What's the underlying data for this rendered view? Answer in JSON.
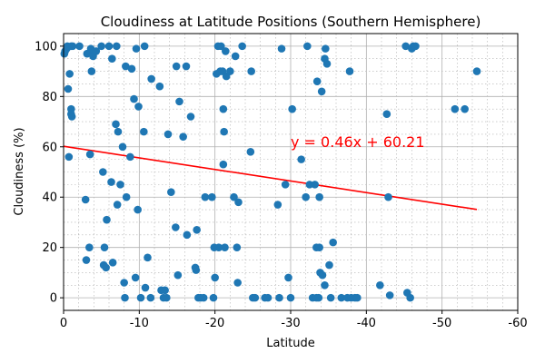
{
  "chart_data": {
    "type": "scatter",
    "title": "Cloudiness at Latitude Positions (Southern Hemisphere)",
    "xlabel": "Latitude",
    "ylabel": "Cloudiness (%)",
    "xlim": [
      0,
      -60
    ],
    "ylim": [
      -5,
      105
    ],
    "xticks": [
      0,
      -10,
      -20,
      -30,
      -40,
      -50,
      -60
    ],
    "yticks": [
      0,
      20,
      40,
      60,
      80,
      100
    ],
    "grid": true,
    "colors": {
      "points": "#1f77b4",
      "regression": "#ff0000"
    },
    "regression": {
      "slope": 0.46,
      "intercept": 60.21,
      "x_range": [
        0,
        -54.6
      ],
      "label": "y = 0.46x + 60.21"
    },
    "points": [
      [
        -0.1,
        97
      ],
      [
        -0.2,
        98
      ],
      [
        -0.4,
        99
      ],
      [
        -0.5,
        100
      ],
      [
        -0.6,
        83
      ],
      [
        -0.7,
        56
      ],
      [
        -0.8,
        89
      ],
      [
        -1.0,
        100
      ],
      [
        -1.0,
        75
      ],
      [
        -1.0,
        73
      ],
      [
        -1.1,
        72
      ],
      [
        -1.2,
        100
      ],
      [
        -2.1,
        100
      ],
      [
        -2.9,
        39
      ],
      [
        -3.0,
        15
      ],
      [
        -3.1,
        97
      ],
      [
        -3.4,
        20
      ],
      [
        -3.5,
        57
      ],
      [
        -3.6,
        98
      ],
      [
        -3.6,
        99
      ],
      [
        -3.7,
        90
      ],
      [
        -3.9,
        96
      ],
      [
        -4.3,
        98
      ],
      [
        -5.0,
        100
      ],
      [
        -5.2,
        50
      ],
      [
        -5.3,
        13
      ],
      [
        -5.4,
        20
      ],
      [
        -5.6,
        12
      ],
      [
        -5.7,
        31
      ],
      [
        -6.0,
        100
      ],
      [
        -6.3,
        46
      ],
      [
        -6.4,
        95
      ],
      [
        -6.5,
        14
      ],
      [
        -6.9,
        69
      ],
      [
        -7.0,
        100
      ],
      [
        -7.1,
        37
      ],
      [
        -7.2,
        66
      ],
      [
        -7.5,
        45
      ],
      [
        -7.8,
        60
      ],
      [
        -8.0,
        6
      ],
      [
        -8.1,
        0
      ],
      [
        -8.2,
        92
      ],
      [
        -8.3,
        40
      ],
      [
        -8.8,
        56
      ],
      [
        -9.0,
        91
      ],
      [
        -9.3,
        79
      ],
      [
        -9.5,
        8
      ],
      [
        -9.6,
        99
      ],
      [
        -9.8,
        35
      ],
      [
        -9.9,
        76
      ],
      [
        -10.2,
        0
      ],
      [
        -10.6,
        66
      ],
      [
        -10.7,
        100
      ],
      [
        -10.8,
        4
      ],
      [
        -11.1,
        16
      ],
      [
        -11.5,
        0
      ],
      [
        -11.6,
        87
      ],
      [
        -12.7,
        84
      ],
      [
        -12.9,
        3
      ],
      [
        -13.2,
        0
      ],
      [
        -13.4,
        3
      ],
      [
        -13.6,
        0
      ],
      [
        -13.8,
        65
      ],
      [
        -14.2,
        42
      ],
      [
        -14.8,
        28
      ],
      [
        -14.9,
        92
      ],
      [
        -15.1,
        9
      ],
      [
        -15.3,
        78
      ],
      [
        -15.8,
        64
      ],
      [
        -16.2,
        92
      ],
      [
        -16.3,
        25
      ],
      [
        -16.8,
        72
      ],
      [
        -17.4,
        12
      ],
      [
        -17.5,
        11
      ],
      [
        -17.6,
        27
      ],
      [
        -17.8,
        0
      ],
      [
        -18.1,
        0
      ],
      [
        -18.5,
        0
      ],
      [
        -18.7,
        40
      ],
      [
        -19.6,
        40
      ],
      [
        -19.8,
        0
      ],
      [
        -19.9,
        20
      ],
      [
        -20.0,
        8
      ],
      [
        -20.2,
        89
      ],
      [
        -20.4,
        100
      ],
      [
        -20.5,
        20
      ],
      [
        -20.7,
        90
      ],
      [
        -20.8,
        100
      ],
      [
        -21.0,
        90
      ],
      [
        -21.1,
        75
      ],
      [
        -21.1,
        53
      ],
      [
        -21.2,
        66
      ],
      [
        -21.3,
        20
      ],
      [
        -21.4,
        98
      ],
      [
        -21.5,
        88
      ],
      [
        -22.0,
        90
      ],
      [
        -22.5,
        40
      ],
      [
        -22.7,
        96
      ],
      [
        -22.9,
        20
      ],
      [
        -23.0,
        6
      ],
      [
        -23.1,
        38
      ],
      [
        -23.6,
        100
      ],
      [
        -24.7,
        58
      ],
      [
        -24.8,
        90
      ],
      [
        -25.0,
        0
      ],
      [
        -25.3,
        0
      ],
      [
        -26.6,
        0
      ],
      [
        -27.0,
        0
      ],
      [
        -28.3,
        37
      ],
      [
        -28.5,
        0
      ],
      [
        -28.8,
        99
      ],
      [
        -29.3,
        45
      ],
      [
        -29.7,
        8
      ],
      [
        -30.0,
        0
      ],
      [
        -30.2,
        75
      ],
      [
        -31.4,
        55
      ],
      [
        -32.0,
        40
      ],
      [
        -32.2,
        100
      ],
      [
        -32.5,
        45
      ],
      [
        -32.9,
        0
      ],
      [
        -33.2,
        45
      ],
      [
        -33.4,
        0
      ],
      [
        -33.4,
        20
      ],
      [
        -33.5,
        86
      ],
      [
        -33.7,
        0
      ],
      [
        -33.8,
        20
      ],
      [
        -33.8,
        40
      ],
      [
        -33.9,
        10
      ],
      [
        -34.1,
        82
      ],
      [
        -34.2,
        9
      ],
      [
        -34.5,
        5
      ],
      [
        -34.5,
        95
      ],
      [
        -34.6,
        99
      ],
      [
        -34.8,
        93
      ],
      [
        -35.1,
        13
      ],
      [
        -35.3,
        0
      ],
      [
        -35.6,
        22
      ],
      [
        -36.7,
        0
      ],
      [
        -37.5,
        0
      ],
      [
        -37.8,
        90
      ],
      [
        -38.0,
        0
      ],
      [
        -38.5,
        0
      ],
      [
        -38.8,
        0
      ],
      [
        -41.8,
        5
      ],
      [
        -42.7,
        73
      ],
      [
        -42.9,
        40
      ],
      [
        -43.1,
        1
      ],
      [
        -45.2,
        100
      ],
      [
        -45.4,
        2
      ],
      [
        -45.8,
        0
      ],
      [
        -46.0,
        99
      ],
      [
        -46.2,
        100
      ],
      [
        -46.5,
        100
      ],
      [
        -51.7,
        75
      ],
      [
        -53.0,
        75
      ],
      [
        -54.6,
        90
      ]
    ]
  }
}
